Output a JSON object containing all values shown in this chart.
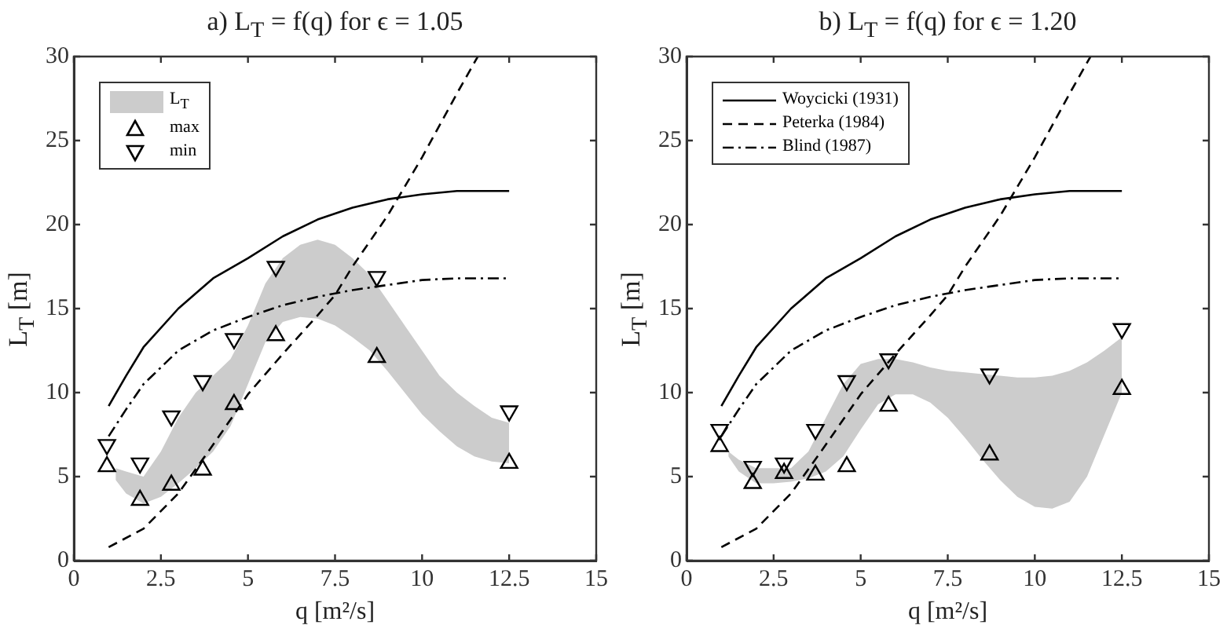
{
  "chart_data": [
    {
      "type": "line",
      "title": "a) L$_{T}$ = f(q) for ϵ = 1.05",
      "xlabel": "q [m²/s]",
      "ylabel": "L$_{T}$ [m]",
      "xlim": [
        0,
        15
      ],
      "xticks": [
        0,
        2.5,
        5,
        7.5,
        10,
        12.5,
        15
      ],
      "ylim": [
        0,
        30
      ],
      "yticks": [
        0,
        5,
        10,
        15,
        20,
        25,
        30
      ],
      "grid": false,
      "legend": "top left",
      "series": [
        {
          "name": "L$_{T}$",
          "color": "#cccccc",
          "x": [
            1.2,
            1.5,
            2,
            2.5,
            3,
            3.5,
            4,
            4.5,
            5,
            5.5,
            6,
            6.5,
            7,
            7.5,
            8,
            8.5,
            9,
            9.5,
            10,
            10.5,
            11,
            11.5,
            12,
            12.5
          ],
          "lower": [
            4.8,
            4,
            3.4,
            3.8,
            4.6,
            5.5,
            6.5,
            8,
            10.5,
            13,
            14.2,
            14.5,
            14.4,
            14,
            13.3,
            12.5,
            11.3,
            10,
            8.7,
            7.7,
            6.8,
            6.2,
            5.9,
            5.8
          ],
          "values": [
            null,
            null,
            null,
            null,
            null,
            null,
            null,
            null,
            null,
            null,
            null,
            null,
            null,
            null,
            null,
            null,
            null,
            null,
            null,
            null,
            null,
            null,
            null,
            null
          ],
          "upper": [
            5.5,
            5.3,
            5,
            6.5,
            8.5,
            10,
            11,
            12,
            14,
            16.5,
            18,
            18.8,
            19.1,
            18.8,
            18,
            17,
            15.5,
            14,
            12.5,
            11,
            10,
            9.2,
            8.5,
            8.2
          ]
        },
        {
          "color": "#000000",
          "line_style": "solid",
          "marker": "none",
          "x": [
            1,
            1.5,
            2,
            3,
            4,
            5,
            6,
            7,
            8,
            9,
            10,
            11,
            12.5
          ],
          "values": [
            9.2,
            11,
            12.7,
            15,
            16.8,
            18,
            19.3,
            20.3,
            21,
            21.5,
            21.8,
            22,
            22
          ]
        },
        {
          "color": "#000000",
          "line_style": "dashed",
          "marker": "none",
          "x": [
            1,
            2,
            3,
            4,
            5,
            6,
            7,
            7.5,
            8,
            9,
            10,
            11,
            11.6
          ],
          "values": [
            0.8,
            1.9,
            4,
            6.9,
            9.9,
            12.3,
            14.6,
            15.8,
            17.5,
            20.5,
            24,
            27.8,
            30
          ]
        },
        {
          "color": "#000000",
          "line_style": "dashdot",
          "marker": "none",
          "x": [
            1,
            1.5,
            2,
            3,
            4,
            5,
            6,
            7,
            8,
            9,
            10,
            11,
            12.5
          ],
          "values": [
            7.4,
            9,
            10.5,
            12.5,
            13.7,
            14.5,
            15.2,
            15.7,
            16.1,
            16.4,
            16.7,
            16.8,
            16.8
          ]
        },
        {
          "type": "scatter",
          "name": "max",
          "color": "#000000",
          "marker": "triangle",
          "x": [
            0.95,
            1.9,
            2.8,
            3.7,
            4.6,
            5.8,
            8.7,
            12.5
          ],
          "values": [
            5.6,
            3.6,
            4.5,
            5.4,
            9.3,
            13.4,
            12.1,
            5.8
          ]
        },
        {
          "type": "scatter",
          "name": "min",
          "color": "#000000",
          "marker": "triangle-down",
          "x": [
            0.95,
            1.9,
            2.8,
            3.7,
            4.6,
            5.8,
            8.7,
            12.5
          ],
          "values": [
            6.9,
            5.8,
            8.6,
            10.7,
            13.2,
            17.5,
            16.9,
            8.9
          ]
        }
      ]
    },
    {
      "type": "line",
      "title": "b) L$_{T}$ = f(q) for ϵ = 1.20",
      "xlabel": "q [m²/s]",
      "ylabel": "L$_{T}$ [m]",
      "xlim": [
        0,
        15
      ],
      "xticks": [
        0,
        2.5,
        5,
        7.5,
        10,
        12.5,
        15
      ],
      "ylim": [
        0,
        30
      ],
      "yticks": [
        0,
        5,
        10,
        15,
        20,
        25,
        30
      ],
      "grid": false,
      "legend": "top left",
      "series": [
        {
          "color": "#cccccc",
          "x": [
            1.2,
            1.5,
            2,
            2.5,
            3,
            3.5,
            4,
            4.5,
            5,
            5.5,
            6,
            6.5,
            7,
            7.5,
            8,
            8.5,
            9,
            9.5,
            10,
            10.5,
            11,
            11.5,
            12,
            12.5
          ],
          "lower": [
            6.2,
            5.3,
            4.6,
            4.6,
            4.7,
            4.9,
            5.3,
            6.2,
            7.8,
            9.3,
            9.9,
            9.9,
            9.4,
            8.5,
            7.3,
            6,
            4.8,
            3.8,
            3.2,
            3.1,
            3.5,
            5,
            7.5,
            10
          ],
          "values": [
            null,
            null,
            null,
            null,
            null,
            null,
            null,
            null,
            null,
            null,
            null,
            null,
            null,
            null,
            null,
            null,
            null,
            null,
            null,
            null,
            null,
            null,
            null,
            null
          ],
          "upper": [
            6.5,
            6,
            5.5,
            5.5,
            5.5,
            6.5,
            8.5,
            10.5,
            11.7,
            12,
            12,
            11.8,
            11.5,
            11.3,
            11.2,
            11.1,
            11,
            10.9,
            10.9,
            11,
            11.3,
            11.8,
            12.5,
            13.3
          ]
        },
        {
          "name": "Woycicki (1931)",
          "color": "#000000",
          "line_style": "solid",
          "marker": "none",
          "x": [
            1,
            1.5,
            2,
            3,
            4,
            5,
            6,
            7,
            8,
            9,
            10,
            11,
            12.5
          ],
          "values": [
            9.2,
            11,
            12.7,
            15,
            16.8,
            18,
            19.3,
            20.3,
            21,
            21.5,
            21.8,
            22,
            22
          ]
        },
        {
          "name": "Peterka (1984)",
          "color": "#000000",
          "line_style": "dashed",
          "marker": "none",
          "x": [
            1,
            2,
            3,
            4,
            5,
            6,
            7,
            7.5,
            8,
            9,
            10,
            11,
            11.6
          ],
          "values": [
            0.8,
            1.9,
            4,
            6.9,
            9.9,
            12.3,
            14.6,
            15.8,
            17.5,
            20.5,
            24,
            27.8,
            30
          ]
        },
        {
          "name": "Blind (1987)",
          "color": "#000000",
          "line_style": "dashdot",
          "marker": "none",
          "x": [
            1,
            1.5,
            2,
            3,
            4,
            5,
            6,
            7,
            8,
            9,
            10,
            11,
            12.5
          ],
          "values": [
            7.4,
            9,
            10.5,
            12.5,
            13.7,
            14.5,
            15.2,
            15.7,
            16.1,
            16.4,
            16.7,
            16.8,
            16.8
          ]
        },
        {
          "type": "scatter",
          "color": "#000000",
          "marker": "triangle",
          "x": [
            0.95,
            1.9,
            2.8,
            3.7,
            4.6,
            5.8,
            8.7,
            12.5
          ],
          "values": [
            6.8,
            4.6,
            5.2,
            5.1,
            5.6,
            9.2,
            6.3,
            10.2
          ]
        },
        {
          "type": "scatter",
          "color": "#000000",
          "marker": "triangle-down",
          "x": [
            0.95,
            1.9,
            2.8,
            3.7,
            4.6,
            5.8,
            8.7,
            12.5
          ],
          "values": [
            7.8,
            5.6,
            5.8,
            7.8,
            10.7,
            12,
            11.1,
            13.8
          ]
        }
      ]
    }
  ]
}
